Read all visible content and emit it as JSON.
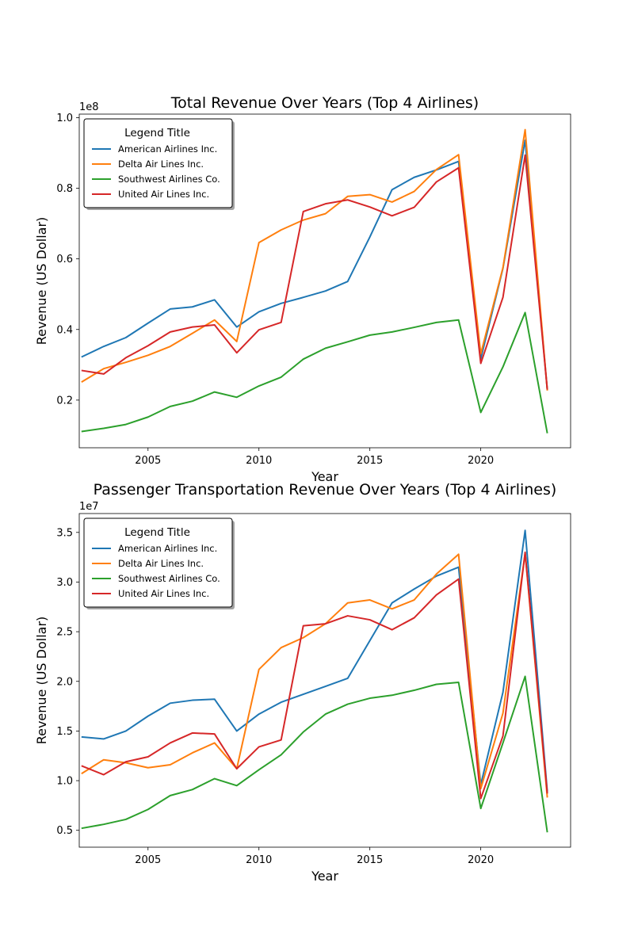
{
  "colors": {
    "American Airlines Inc.": "#1f77b4",
    "Delta Air Lines Inc.": "#ff7f0e",
    "Southwest Airlines Co.": "#2ca02c",
    "United Air Lines Inc.": "#d62728"
  },
  "chart_data": [
    {
      "type": "line",
      "title": "Total Revenue Over Years (Top 4 Airlines)",
      "xlabel": "Year",
      "ylabel": "Revenue (US Dollar)",
      "offset_label": "1e8",
      "xlim": [
        2001.9,
        2024.05
      ],
      "ylim": [
        0.065,
        1.01
      ],
      "x_ticks": [
        2005,
        2010,
        2015,
        2020
      ],
      "x_tick_labels": [
        "2005",
        "2010",
        "2015",
        "2020"
      ],
      "y_ticks": [
        0.2,
        0.4,
        0.6,
        0.8,
        1.0
      ],
      "y_tick_labels": [
        "0.2",
        "0.4",
        "0.6",
        "0.8",
        "1.0"
      ],
      "legend": {
        "title": "Legend Title",
        "position": "upper-left"
      },
      "x": [
        2002,
        2003,
        2004,
        2005,
        2006,
        2007,
        2008,
        2009,
        2010,
        2011,
        2012,
        2013,
        2014,
        2015,
        2016,
        2017,
        2018,
        2019,
        2020,
        2021,
        2022,
        2023
      ],
      "series": [
        {
          "name": "American Airlines Inc.",
          "values": [
            0.322,
            0.352,
            0.377,
            0.418,
            0.458,
            0.464,
            0.484,
            0.407,
            0.45,
            0.474,
            0.491,
            0.509,
            0.536,
            0.662,
            0.796,
            0.831,
            0.852,
            0.876,
            0.317,
            0.573,
            0.936,
            0.228
          ]
        },
        {
          "name": "Delta Air Lines Inc.",
          "values": [
            0.251,
            0.289,
            0.307,
            0.327,
            0.352,
            0.389,
            0.427,
            0.366,
            0.646,
            0.682,
            0.71,
            0.728,
            0.777,
            0.782,
            0.761,
            0.791,
            0.853,
            0.895,
            0.331,
            0.575,
            0.966,
            0.227
          ]
        },
        {
          "name": "Southwest Airlines Co.",
          "values": [
            0.111,
            0.12,
            0.131,
            0.152,
            0.182,
            0.197,
            0.223,
            0.208,
            0.24,
            0.265,
            0.316,
            0.347,
            0.365,
            0.384,
            0.393,
            0.406,
            0.42,
            0.427,
            0.165,
            0.294,
            0.448,
            0.106
          ]
        },
        {
          "name": "United Air Lines Inc.",
          "values": [
            0.284,
            0.274,
            0.32,
            0.354,
            0.393,
            0.407,
            0.413,
            0.334,
            0.399,
            0.42,
            0.734,
            0.756,
            0.767,
            0.747,
            0.722,
            0.746,
            0.818,
            0.858,
            0.304,
            0.491,
            0.894,
            0.23
          ]
        }
      ]
    },
    {
      "type": "line",
      "title": "Passenger Transportation Revenue Over Years (Top 4 Airlines)",
      "xlabel": "Year",
      "ylabel": "Revenue (US Dollar)",
      "offset_label": "1e7",
      "xlim": [
        2001.9,
        2024.05
      ],
      "ylim": [
        0.33,
        3.69
      ],
      "x_ticks": [
        2005,
        2010,
        2015,
        2020
      ],
      "x_tick_labels": [
        "2005",
        "2010",
        "2015",
        "2020"
      ],
      "y_ticks": [
        0.5,
        1.0,
        1.5,
        2.0,
        2.5,
        3.0,
        3.5
      ],
      "y_tick_labels": [
        "0.5",
        "1.0",
        "1.5",
        "2.0",
        "2.5",
        "3.0",
        "3.5"
      ],
      "legend": {
        "title": "Legend Title",
        "position": "upper-left"
      },
      "x": [
        2002,
        2003,
        2004,
        2005,
        2006,
        2007,
        2008,
        2009,
        2010,
        2011,
        2012,
        2013,
        2014,
        2015,
        2016,
        2017,
        2018,
        2019,
        2020,
        2021,
        2022,
        2023
      ],
      "series": [
        {
          "name": "American Airlines Inc.",
          "values": [
            1.44,
            1.42,
            1.5,
            1.65,
            1.78,
            1.81,
            1.82,
            1.5,
            1.67,
            1.79,
            1.87,
            1.95,
            2.03,
            2.41,
            2.79,
            2.93,
            3.06,
            3.15,
            0.96,
            1.89,
            3.52,
            0.89
          ]
        },
        {
          "name": "Delta Air Lines Inc.",
          "values": [
            1.07,
            1.21,
            1.18,
            1.13,
            1.16,
            1.28,
            1.38,
            1.12,
            2.12,
            2.34,
            2.44,
            2.58,
            2.79,
            2.82,
            2.73,
            2.82,
            3.08,
            3.28,
            0.92,
            1.68,
            3.29,
            0.83
          ]
        },
        {
          "name": "Southwest Airlines Co.",
          "values": [
            0.52,
            0.56,
            0.61,
            0.71,
            0.85,
            0.91,
            1.02,
            0.95,
            1.11,
            1.26,
            1.49,
            1.67,
            1.77,
            1.83,
            1.86,
            1.91,
            1.97,
            1.99,
            0.72,
            1.38,
            2.05,
            0.48
          ]
        },
        {
          "name": "United Air Lines Inc.",
          "values": [
            1.15,
            1.06,
            1.19,
            1.24,
            1.38,
            1.48,
            1.47,
            1.12,
            1.34,
            1.41,
            2.56,
            2.58,
            2.66,
            2.62,
            2.52,
            2.64,
            2.87,
            3.03,
            0.82,
            1.45,
            3.3,
            0.87
          ]
        }
      ]
    }
  ]
}
